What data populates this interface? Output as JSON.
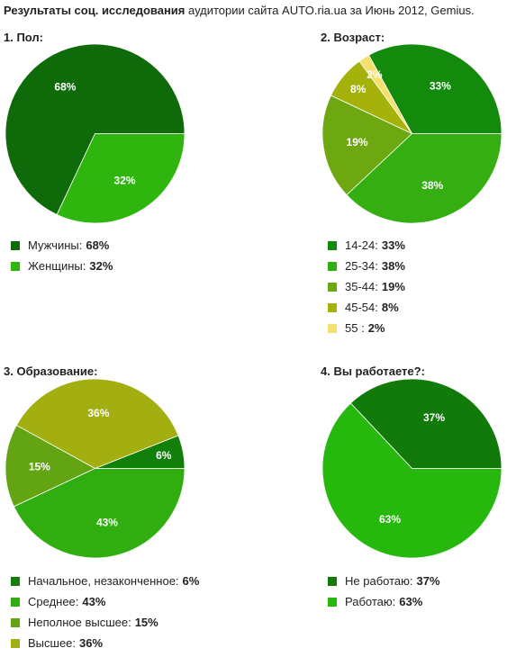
{
  "page": {
    "title_bold": "Результаты соц. исследования",
    "title_rest": " аудитории сайта AUTO.ria.ua за Июнь 2012, Gemius."
  },
  "chart_data": [
    {
      "type": "pie",
      "title": "1. Пол:",
      "slices": [
        {
          "label": "Мужчины:",
          "value": 68,
          "value_label": "68%",
          "color": "#0f6a0a"
        },
        {
          "label": "Женщины:",
          "value": 32,
          "value_label": "32%",
          "color": "#2eb50e"
        }
      ]
    },
    {
      "type": "pie",
      "title": "2. Возраст:",
      "slices": [
        {
          "label": "14-24:",
          "value": 33,
          "value_label": "33%",
          "color": "#138a0b"
        },
        {
          "label": "55 :",
          "value": 2,
          "value_label": "2%",
          "color": "#f3e06e"
        },
        {
          "label": "45-54:",
          "value": 8,
          "value_label": "8%",
          "color": "#a4b20b"
        },
        {
          "label": "35-44:",
          "value": 19,
          "value_label": "19%",
          "color": "#6ea811"
        },
        {
          "label": "25-34:",
          "value": 38,
          "value_label": "38%",
          "color": "#34ae10"
        }
      ],
      "legend_order": [
        0,
        4,
        3,
        2,
        1
      ]
    },
    {
      "type": "pie",
      "title": "3. Образование:",
      "slices": [
        {
          "label": "Начальное, незаконченное:",
          "value": 6,
          "value_label": "6%",
          "color": "#137f0b"
        },
        {
          "label": "Высшее:",
          "value": 36,
          "value_label": "36%",
          "color": "#a3ae10"
        },
        {
          "label": "Неполное высшее:",
          "value": 15,
          "value_label": "15%",
          "color": "#62a412"
        },
        {
          "label": "Среднее:",
          "value": 43,
          "value_label": "43%",
          "color": "#30ae10"
        }
      ],
      "legend_order": [
        0,
        3,
        2,
        1
      ]
    },
    {
      "type": "pie",
      "title": "4. Вы работаете?:",
      "slices": [
        {
          "label": "Не работаю:",
          "value": 37,
          "value_label": "37%",
          "color": "#117a0a"
        },
        {
          "label": "Работаю:",
          "value": 63,
          "value_label": "63%",
          "color": "#27b80e"
        }
      ]
    }
  ]
}
